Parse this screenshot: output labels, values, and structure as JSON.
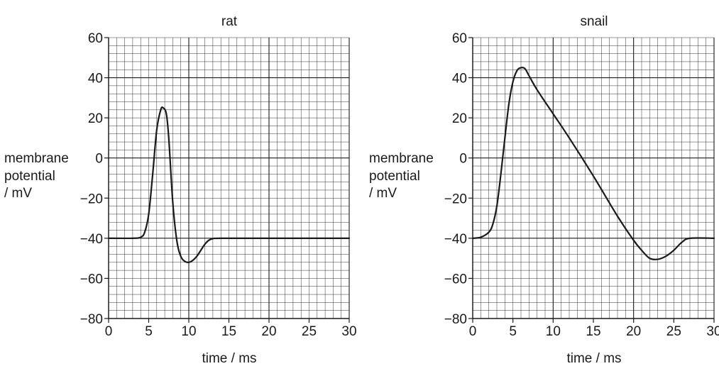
{
  "chart_data": [
    {
      "type": "line",
      "title": "rat",
      "xlabel": "time / ms",
      "ylabel_lines": [
        "membrane",
        "potential",
        "/ mV"
      ],
      "xlim": [
        0,
        30
      ],
      "ylim": [
        -80,
        60
      ],
      "xticks": [
        "0",
        "5",
        "10",
        "15",
        "20",
        "25",
        "30"
      ],
      "yticks": [
        "60",
        "40",
        "20",
        "0",
        "−20",
        "−40",
        "−60",
        "−80"
      ],
      "grid": true,
      "line_color": "#1a1a1a",
      "x": [
        0,
        3,
        4,
        4.5,
        5,
        5.5,
        6,
        6.5,
        6.8,
        7.2,
        7.5,
        8,
        8.5,
        9,
        9.5,
        10,
        10.5,
        11,
        11.5,
        12,
        12.5,
        13,
        14,
        20,
        30
      ],
      "y": [
        -40,
        -40,
        -39.5,
        -37,
        -28,
        -8,
        14,
        24,
        25,
        22,
        10,
        -22,
        -41,
        -49,
        -51.5,
        -52,
        -51,
        -49,
        -46,
        -43,
        -41,
        -40.2,
        -40,
        -40,
        -40
      ]
    },
    {
      "type": "line",
      "title": "snail",
      "xlabel": "time / ms",
      "ylabel_lines": [
        "membrane",
        "potential",
        "/ mV"
      ],
      "xlim": [
        0,
        30
      ],
      "ylim": [
        -80,
        60
      ],
      "xticks": [
        "0",
        "5",
        "10",
        "15",
        "20",
        "25",
        "30"
      ],
      "yticks": [
        "60",
        "40",
        "20",
        "0",
        "−20",
        "−40",
        "−60",
        "−80"
      ],
      "grid": true,
      "line_color": "#1a1a1a",
      "x": [
        0,
        1,
        2,
        2.5,
        3,
        3.5,
        4,
        4.5,
        5,
        5.5,
        6,
        6.5,
        7,
        8,
        10,
        12,
        15,
        18,
        20,
        21,
        22,
        23,
        24,
        25,
        26,
        27,
        30
      ],
      "y": [
        -40,
        -39.5,
        -37,
        -33,
        -24,
        -8,
        10,
        27,
        38,
        43.5,
        45,
        44.5,
        41,
        34,
        22,
        10,
        -9,
        -29,
        -41,
        -46,
        -50,
        -50.5,
        -49,
        -46,
        -42,
        -40,
        -40
      ]
    }
  ]
}
